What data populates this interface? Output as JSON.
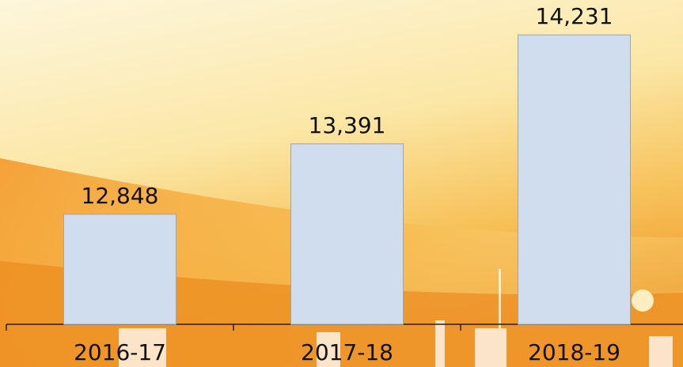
{
  "chart_data": {
    "type": "bar",
    "categories": [
      "2016-17",
      "2017-18",
      "2018-19"
    ],
    "values": [
      12848,
      13391,
      14231
    ],
    "value_labels": [
      "12,848",
      "13,391",
      "14,231"
    ],
    "color": "#d0ddef",
    "ylim": [
      12000,
      14500
    ]
  }
}
